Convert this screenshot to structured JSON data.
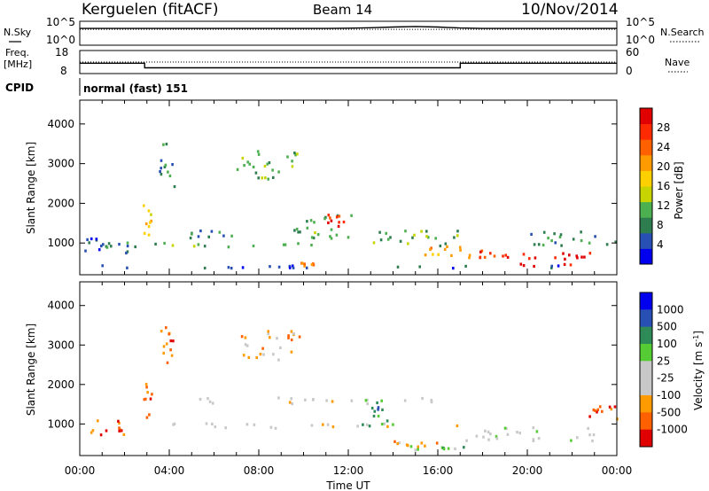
{
  "header": {
    "site": "Kerguelen (fitACF)",
    "beam": "Beam 14",
    "date": "10/Nov/2014"
  },
  "panel_labels": {
    "nsky": "N.Sky",
    "nsearch": "N.Search",
    "freq_line1": "Freq.",
    "freq_line2": "[MHz]",
    "nave": "Nave",
    "cpid": "CPID",
    "cpid_value": "normal (fast) 151"
  },
  "colors": {
    "power": [
      "#0000ee",
      "#2850b4",
      "#2e7d4f",
      "#4caf50",
      "#c8d400",
      "#ffd000",
      "#ff9a00",
      "#ff6000",
      "#ff2a00",
      "#e00000"
    ],
    "velocity": [
      "#e00000",
      "#ff6000",
      "#ff9a00",
      "#c8c8c8",
      "#c8c8c8",
      "#55cc33",
      "#2e8b57",
      "#2850b4",
      "#0000ee"
    ],
    "ground_scatter": "#c8c8c8"
  },
  "chart_data": [
    {
      "type": "line",
      "name": "noise",
      "left_labels": [
        "10^5",
        "10^0"
      ],
      "right_labels": [
        "10^5",
        "10^0"
      ],
      "left_series_label": "N.Sky",
      "right_series_label": "N.Search",
      "x": [
        0,
        1,
        2,
        3,
        4,
        5,
        6,
        7,
        8,
        9,
        10,
        11,
        12,
        13,
        14,
        15,
        16,
        17,
        18,
        19,
        20,
        21,
        22,
        23,
        24
      ],
      "y_log10": [
        3.5,
        3.5,
        3.5,
        3.5,
        3.5,
        3.5,
        3.5,
        3.5,
        3.5,
        3.5,
        3.5,
        3.5,
        3.55,
        3.65,
        3.8,
        3.9,
        3.8,
        3.6,
        3.5,
        3.5,
        3.5,
        3.5,
        3.5,
        3.5,
        3.5
      ],
      "ylim": [
        0,
        5
      ]
    },
    {
      "type": "line",
      "name": "frequency",
      "left_labels": [
        "18",
        "8"
      ],
      "right_labels": [
        "60",
        "0"
      ],
      "x": [
        0,
        2.9,
        2.9,
        17,
        17,
        24
      ],
      "freq_mhz": [
        12.5,
        12.5,
        10.5,
        10.5,
        12.5,
        12.5
      ],
      "nave": 30,
      "ylim_freq": [
        8,
        18
      ],
      "ylim_nave": [
        0,
        60
      ]
    },
    {
      "type": "heatmap",
      "name": "power",
      "ylabel": "Slant Range [km]",
      "yticks": [
        1000,
        2000,
        3000,
        4000
      ],
      "ylim": [
        200,
        4600
      ],
      "xlim": [
        0,
        24
      ],
      "colorbar_label": "Power [dB]",
      "colorbar_ticks": [
        "4",
        "8",
        "12",
        "16",
        "20",
        "24",
        "28"
      ],
      "blobs": [
        {
          "t0": 0.0,
          "t1": 24.0,
          "r0": 350,
          "r1": 420,
          "level": 1
        },
        {
          "t0": 0.2,
          "t1": 2.5,
          "r0": 700,
          "r1": 1100,
          "level": 1
        },
        {
          "t0": 1.0,
          "t1": 10.5,
          "r0": 860,
          "r1": 1000,
          "level": 3
        },
        {
          "t0": 2.8,
          "t1": 3.2,
          "r0": 1100,
          "r1": 2000,
          "level": 5
        },
        {
          "t0": 3.5,
          "t1": 4.2,
          "r0": 2400,
          "r1": 3500,
          "level": 2
        },
        {
          "t0": 4.5,
          "t1": 7.0,
          "r0": 1100,
          "r1": 1300,
          "level": 2
        },
        {
          "t0": 7.0,
          "t1": 9.8,
          "r0": 2600,
          "r1": 3400,
          "level": 3
        },
        {
          "t0": 9.5,
          "t1": 12.5,
          "r0": 1100,
          "r1": 1700,
          "level": 3
        },
        {
          "t0": 10.8,
          "t1": 11.8,
          "r0": 1400,
          "r1": 1700,
          "level": 8
        },
        {
          "t0": 12.5,
          "t1": 17.0,
          "r0": 900,
          "r1": 1300,
          "level": 3
        },
        {
          "t0": 15.0,
          "t1": 17.5,
          "r0": 600,
          "r1": 900,
          "level": 6
        },
        {
          "t0": 17.8,
          "t1": 20.0,
          "r0": 600,
          "r1": 900,
          "level": 8
        },
        {
          "t0": 19.5,
          "t1": 23.0,
          "r0": 400,
          "r1": 750,
          "level": 9
        },
        {
          "t0": 20.0,
          "t1": 24.0,
          "r0": 900,
          "r1": 1300,
          "level": 2
        },
        {
          "t0": 9.8,
          "t1": 10.6,
          "r0": 400,
          "r1": 500,
          "level": 7
        }
      ]
    },
    {
      "type": "heatmap",
      "name": "velocity",
      "ylabel": "Slant Range [km]",
      "xlabel": "Time UT",
      "xticks": [
        "00:00",
        "04:00",
        "08:00",
        "12:00",
        "16:00",
        "20:00",
        "00:00"
      ],
      "yticks": [
        1000,
        2000,
        3000,
        4000
      ],
      "ylim": [
        200,
        4600
      ],
      "xlim": [
        0,
        24
      ],
      "colorbar_label": "Velocity [m s-1]",
      "colorbar_ticks": [
        "1000",
        "500",
        "100",
        "25",
        "-25",
        "-100",
        "-500",
        "-1000"
      ],
      "blobs": [
        {
          "t0": 0.2,
          "t1": 2.0,
          "r0": 700,
          "r1": 1100,
          "level": 1
        },
        {
          "t0": 2.8,
          "t1": 3.2,
          "r0": 1100,
          "r1": 2000,
          "level": 1
        },
        {
          "t0": 3.5,
          "t1": 4.2,
          "r0": 2400,
          "r1": 3500,
          "level": 1
        },
        {
          "t0": 4.0,
          "t1": 17.0,
          "r0": 880,
          "r1": 1000,
          "level": 3
        },
        {
          "t0": 5.0,
          "t1": 16.0,
          "r0": 1500,
          "r1": 1650,
          "level": 3
        },
        {
          "t0": 7.0,
          "t1": 9.8,
          "r0": 2600,
          "r1": 3400,
          "level": 2
        },
        {
          "t0": 12.5,
          "t1": 14.0,
          "r0": 900,
          "r1": 1600,
          "level": 6
        },
        {
          "t0": 13.8,
          "t1": 16.0,
          "r0": 400,
          "r1": 550,
          "level": 2
        },
        {
          "t0": 14.5,
          "t1": 17.5,
          "r0": 300,
          "r1": 420,
          "level": 5
        },
        {
          "t0": 17.0,
          "t1": 23.5,
          "r0": 550,
          "r1": 900,
          "level": 4
        },
        {
          "t0": 22.5,
          "t1": 24.0,
          "r0": 1100,
          "r1": 1500,
          "level": 1
        }
      ]
    }
  ]
}
